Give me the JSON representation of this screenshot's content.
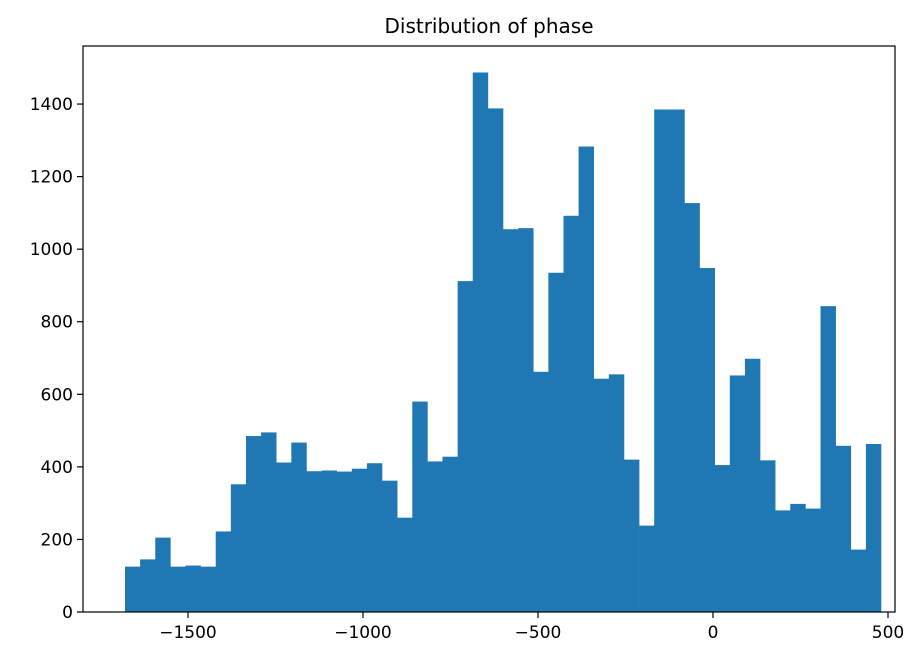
{
  "chart_data": {
    "type": "bar",
    "title": "Distribution of phase",
    "xlabel": "",
    "ylabel": "",
    "xlim": [
      -1800,
      520
    ],
    "ylim": [
      0,
      1560
    ],
    "bar_color": "#1f77b4",
    "grid": false,
    "bin_start": -1680,
    "bin_width": 43.2,
    "values": [
      125,
      145,
      205,
      125,
      128,
      125,
      222,
      352,
      485,
      495,
      412,
      467,
      388,
      390,
      387,
      395,
      410,
      362,
      260,
      580,
      415,
      428,
      912,
      1487,
      1388,
      1055,
      1058,
      662,
      935,
      1092,
      1283,
      643,
      655,
      420,
      238,
      1385,
      1385,
      1127,
      948,
      405,
      652,
      698,
      418,
      280,
      298,
      285,
      843,
      458,
      172,
      463
    ],
    "x_ticks": [
      {
        "value": -1500,
        "label": "−1500"
      },
      {
        "value": -1000,
        "label": "−1000"
      },
      {
        "value": -500,
        "label": "−500"
      },
      {
        "value": 0,
        "label": "0"
      },
      {
        "value": 500,
        "label": "500"
      }
    ],
    "y_ticks": [
      {
        "value": 0,
        "label": "0"
      },
      {
        "value": 200,
        "label": "200"
      },
      {
        "value": 400,
        "label": "400"
      },
      {
        "value": 600,
        "label": "600"
      },
      {
        "value": 800,
        "label": "800"
      },
      {
        "value": 1000,
        "label": "1000"
      },
      {
        "value": 1200,
        "label": "1200"
      },
      {
        "value": 1400,
        "label": "1400"
      }
    ]
  }
}
